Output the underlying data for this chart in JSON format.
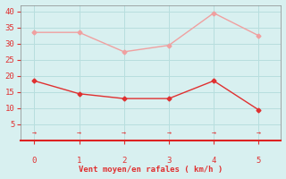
{
  "x": [
    0,
    1,
    2,
    3,
    4,
    5
  ],
  "y_mean": [
    18.5,
    14.5,
    13.0,
    13.0,
    18.5,
    9.5
  ],
  "y_gust": [
    33.5,
    33.5,
    27.5,
    29.5,
    39.5,
    32.5
  ],
  "mean_color": "#e03030",
  "gust_color": "#f0a0a0",
  "bg_color": "#d8f0f0",
  "grid_color": "#b8dede",
  "bottom_line_color": "#dd2222",
  "xlabel": "Vent moyen/en rafales ( km/h )",
  "xlabel_color": "#e03030",
  "tick_color": "#e03030",
  "spine_color": "#888888",
  "ylim": [
    0,
    42
  ],
  "xlim": [
    -0.3,
    5.5
  ],
  "yticks": [
    5,
    10,
    15,
    20,
    25,
    30,
    35,
    40
  ],
  "xticks": [
    0,
    1,
    2,
    3,
    4,
    5
  ],
  "arrow_symbol": "→"
}
